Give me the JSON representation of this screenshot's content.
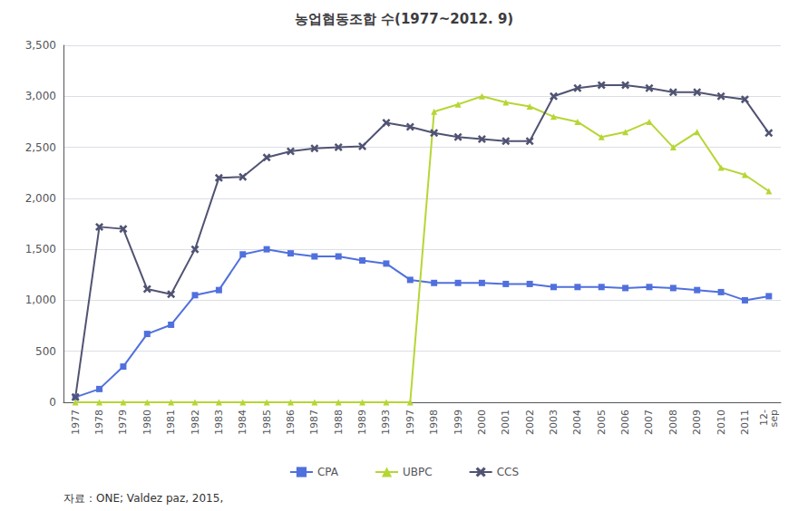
{
  "chart_data": {
    "type": "line",
    "title": "농업협동조합 수(1977~2012. 9)",
    "annotations": [
      "자료：ONE; Valdez paz, 2015,"
    ],
    "categories": [
      "1977",
      "1978",
      "1979",
      "1980",
      "1981",
      "1982",
      "1983",
      "1984",
      "1985",
      "1986",
      "1987",
      "1988",
      "1989",
      "1993",
      "1997",
      "1998",
      "1999",
      "2000",
      "2001",
      "2002",
      "2003",
      "2004",
      "2005",
      "2006",
      "2007",
      "2008",
      "2009",
      "2010",
      "2011",
      "12-\nsep"
    ],
    "series": [
      {
        "name": "CPA",
        "marker": "square",
        "values": [
          50,
          130,
          350,
          670,
          760,
          1050,
          1100,
          1450,
          1500,
          1460,
          1430,
          1430,
          1390,
          1360,
          1200,
          1170,
          1170,
          1170,
          1160,
          1160,
          1130,
          1130,
          1130,
          1120,
          1130,
          1120,
          1100,
          1080,
          1000,
          1040
        ]
      },
      {
        "name": "UBPC",
        "marker": "triangle",
        "values": [
          0,
          0,
          0,
          0,
          0,
          0,
          0,
          0,
          0,
          0,
          0,
          0,
          0,
          0,
          0,
          2850,
          2920,
          3000,
          2940,
          2900,
          2800,
          2750,
          2600,
          2650,
          2750,
          2500,
          2650,
          2300,
          2230,
          2070
        ]
      },
      {
        "name": "CCS",
        "marker": "x",
        "values": [
          50,
          1720,
          1700,
          1110,
          1060,
          1500,
          2200,
          2210,
          2400,
          2460,
          2490,
          2500,
          2510,
          2740,
          2700,
          2640,
          2600,
          2580,
          2560,
          2560,
          3000,
          3080,
          3110,
          3110,
          3080,
          3040,
          3040,
          3000,
          2970,
          2640
        ]
      }
    ],
    "ylim": [
      0,
      3500
    ],
    "yticks": [
      0,
      500,
      {
        "value": 1000,
        "label": "1,000"
      },
      {
        "value": 1500,
        "label": "1,500"
      },
      {
        "value": 2000,
        "label": "2,000"
      },
      {
        "value": 2500,
        "label": "2,500"
      },
      {
        "value": 3000,
        "label": "3,000"
      },
      {
        "value": 3500,
        "label": "3,500"
      }
    ],
    "grid": true,
    "legend": "bottom"
  }
}
